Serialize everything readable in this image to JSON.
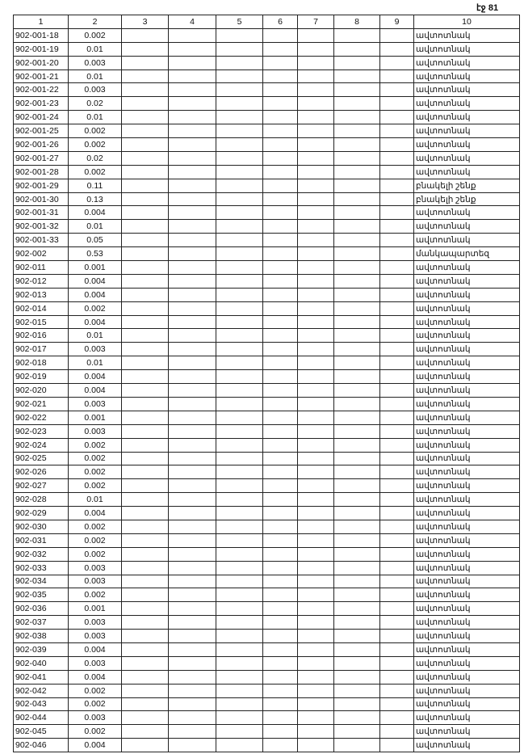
{
  "page_number": "էջ 81",
  "columns": [
    "1",
    "2",
    "3",
    "4",
    "5",
    "6",
    "7",
    "8",
    "9",
    "10"
  ],
  "rows": [
    [
      "902-001-18",
      "0.002",
      "ավտոտնակ"
    ],
    [
      "902-001-19",
      "0.01",
      "ավտոտնակ"
    ],
    [
      "902-001-20",
      "0.003",
      "ավտոտնակ"
    ],
    [
      "902-001-21",
      "0.01",
      "ավտոտնակ"
    ],
    [
      "902-001-22",
      "0.003",
      "ավտոտնակ"
    ],
    [
      "902-001-23",
      "0.02",
      "ավտոտնակ"
    ],
    [
      "902-001-24",
      "0.01",
      "ավտոտնակ"
    ],
    [
      "902-001-25",
      "0.002",
      "ավտոտնակ"
    ],
    [
      "902-001-26",
      "0.002",
      "ավտոտնակ"
    ],
    [
      "902-001-27",
      "0.02",
      "ավտոտնակ"
    ],
    [
      "902-001-28",
      "0.002",
      "ավտոտնակ"
    ],
    [
      "902-001-29",
      "0.11",
      "բնակելի շենք"
    ],
    [
      "902-001-30",
      "0.13",
      "բնակելի շենք"
    ],
    [
      "902-001-31",
      "0.004",
      "ավտոտնակ"
    ],
    [
      "902-001-32",
      "0.01",
      "ավտոտնակ"
    ],
    [
      "902-001-33",
      "0.05",
      "ավտոտնակ"
    ],
    [
      "902-002",
      "0.53",
      "մանկապարտեզ"
    ],
    [
      "902-011",
      "0.001",
      "ավտոտնակ"
    ],
    [
      "902-012",
      "0.004",
      "ավտոտնակ"
    ],
    [
      "902-013",
      "0.004",
      "ավտոտնակ"
    ],
    [
      "902-014",
      "0.002",
      "ավտոտնակ"
    ],
    [
      "902-015",
      "0.004",
      "ավտոտնակ"
    ],
    [
      "902-016",
      "0.01",
      "ավտոտնակ"
    ],
    [
      "902-017",
      "0.003",
      "ավտոտնակ"
    ],
    [
      "902-018",
      "0.01",
      "ավտոտնակ"
    ],
    [
      "902-019",
      "0.004",
      "ավտոտնակ"
    ],
    [
      "902-020",
      "0.004",
      "ավտոտնակ"
    ],
    [
      "902-021",
      "0.003",
      "ավտոտնակ"
    ],
    [
      "902-022",
      "0.001",
      "ավտոտնակ"
    ],
    [
      "902-023",
      "0.003",
      "ավտոտնակ"
    ],
    [
      "902-024",
      "0.002",
      "ավտոտնակ"
    ],
    [
      "902-025",
      "0.002",
      "ավտոտնակ"
    ],
    [
      "902-026",
      "0.002",
      "ավտոտնակ"
    ],
    [
      "902-027",
      "0.002",
      "ավտոտնակ"
    ],
    [
      "902-028",
      "0.01",
      "ավտոտնակ"
    ],
    [
      "902-029",
      "0.004",
      "ավտոտնակ"
    ],
    [
      "902-030",
      "0.002",
      "ավտոտնակ"
    ],
    [
      "902-031",
      "0.002",
      "ավտոտնակ"
    ],
    [
      "902-032",
      "0.002",
      "ավտոտնակ"
    ],
    [
      "902-033",
      "0.003",
      "ավտոտնակ"
    ],
    [
      "902-034",
      "0.003",
      "ավտոտնակ"
    ],
    [
      "902-035",
      "0.002",
      "ավտոտնակ"
    ],
    [
      "902-036",
      "0.001",
      "ավտոտնակ"
    ],
    [
      "902-037",
      "0.003",
      "ավտոտնակ"
    ],
    [
      "902-038",
      "0.003",
      "ավտոտնակ"
    ],
    [
      "902-039",
      "0.004",
      "ավտոտնակ"
    ],
    [
      "902-040",
      "0.003",
      "ավտոտնակ"
    ],
    [
      "902-041",
      "0.004",
      "ավտոտնակ"
    ],
    [
      "902-042",
      "0.002",
      "ավտոտնակ"
    ],
    [
      "902-043",
      "0.002",
      "ավտոտնակ"
    ],
    [
      "902-044",
      "0.003",
      "ավտոտնակ"
    ],
    [
      "902-045",
      "0.002",
      "ավտոտնակ"
    ],
    [
      "902-046",
      "0.004",
      "ավտոտնակ"
    ]
  ]
}
